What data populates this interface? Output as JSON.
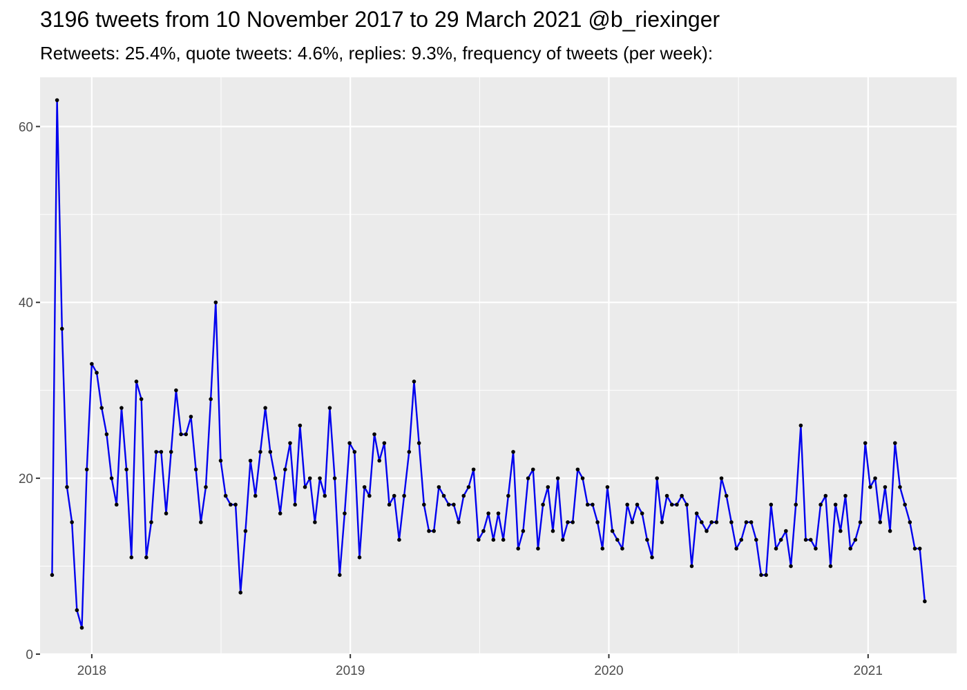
{
  "title": "3196 tweets from 10 November 2017 to 29 March 2021 @b_riexinger",
  "subtitle": "Retweets: 25.4%, quote tweets: 4.6%, replies: 9.3%, frequency of tweets (per week):",
  "chart_data": {
    "type": "line",
    "title": "3196 tweets from 10 November 2017 to 29 March 2021 @b_riexinger",
    "subtitle": "Retweets: 25.4%, quote tweets: 4.6%, replies: 9.3%, frequency of tweets (per week):",
    "xlabel": "",
    "ylabel": "",
    "x_type": "date",
    "xlim": [
      "2017-10-20",
      "2021-05-06"
    ],
    "ylim": [
      0,
      65.6
    ],
    "grid": true,
    "legend": "none",
    "x_ticks": [
      {
        "value": "2018-01-01",
        "label": "2018"
      },
      {
        "value": "2019-01-01",
        "label": "2019"
      },
      {
        "value": "2020-01-01",
        "label": "2020"
      },
      {
        "value": "2021-01-01",
        "label": "2021"
      }
    ],
    "y_ticks": [
      {
        "value": 0,
        "label": "0"
      },
      {
        "value": 20,
        "label": "20"
      },
      {
        "value": 40,
        "label": "40"
      },
      {
        "value": 60,
        "label": "60"
      }
    ],
    "line_color": "#0000ee",
    "point_color": "#000000",
    "start_date": "2017-11-06",
    "interval_days": 7,
    "series": [
      {
        "values": [
          9,
          63,
          37,
          19,
          15,
          5,
          3,
          21,
          33,
          32,
          28,
          25,
          20,
          17,
          28,
          21,
          11,
          31,
          29,
          11,
          15,
          23,
          23,
          16,
          23,
          30,
          25,
          25,
          27,
          21,
          15,
          19,
          29,
          40,
          22,
          18,
          17,
          17,
          7,
          14,
          22,
          18,
          23,
          28,
          23,
          20,
          16,
          21,
          24,
          17,
          26,
          19,
          20,
          15,
          20,
          18,
          28,
          20,
          9,
          16,
          24,
          23,
          11,
          19,
          18,
          25,
          22,
          24,
          17,
          18,
          13,
          18,
          23,
          31,
          24,
          17,
          14,
          14,
          19,
          18,
          17,
          17,
          15,
          18,
          19,
          21,
          13,
          14,
          16,
          13,
          16,
          13,
          18,
          23,
          12,
          14,
          20,
          21,
          12,
          17,
          19,
          14,
          20,
          13,
          15,
          15,
          21,
          20,
          17,
          17,
          15,
          12,
          19,
          14,
          13,
          12,
          17,
          15,
          17,
          16,
          13,
          11,
          20,
          15,
          18,
          17,
          17,
          18,
          17,
          10,
          16,
          15,
          14,
          15,
          15,
          20,
          18,
          15,
          12,
          13,
          15,
          15,
          13,
          9,
          9,
          17,
          12,
          13,
          14,
          10,
          17,
          26,
          13,
          13,
          12,
          17,
          18,
          10,
          17,
          14,
          18,
          12,
          13,
          15,
          24,
          19,
          20,
          15,
          19,
          14,
          24,
          19,
          17,
          15,
          12,
          12,
          6
        ]
      }
    ]
  }
}
